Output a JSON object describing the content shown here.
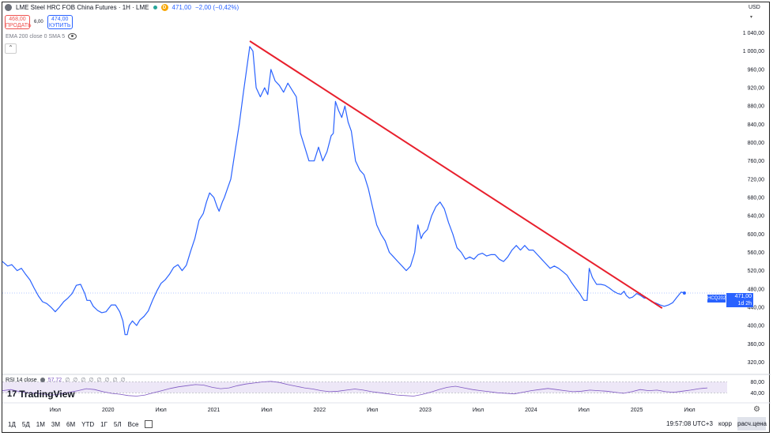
{
  "header": {
    "title": "LME Steel HRC FOB China Futures · 1H · LME",
    "badge": "D",
    "last": "471,00",
    "change": "−2,00 (−0,42%)"
  },
  "trade": {
    "sell_price": "468,00",
    "sell_label": "ПРОДАТЬ",
    "spread": "6,00",
    "buy_price": "474,00",
    "buy_label": "КУПИТЬ"
  },
  "indicator": {
    "label": "EMA 200 close 0 SMA 5"
  },
  "currency": "USD",
  "price_tag": {
    "symbol": "HCQ2025",
    "price": "471,00",
    "countdown": "1d 2h"
  },
  "rsi": {
    "label": "RSI 14 close",
    "value": "57,72",
    "na": "∅ ∅ ∅ ∅ ∅ ∅ ∅ ∅"
  },
  "logo": {
    "mark": "17",
    "text": "TradingView"
  },
  "bottom": {
    "timeframes": [
      "1Д",
      "5Д",
      "1М",
      "3М",
      "6М",
      "YTD",
      "1Г",
      "5Л",
      "Все"
    ],
    "time": "19:57:08 UTC+3",
    "corr": "корр",
    "calc": "расч.цена"
  },
  "colors": {
    "price_line": "#2962ff",
    "trendline": "#e8202d",
    "rsi_line": "#7e57c2",
    "rsi_band": "#e8e1f5",
    "price_tag": "#2962ff"
  },
  "chart_data": {
    "type": "line",
    "title": "LME Steel HRC FOB China Futures · 1H · LME",
    "ylabel": "USD",
    "ylim": [
      300,
      1060
    ],
    "y_ticks": [
      "1 040,00",
      "1 000,00",
      "960,00",
      "920,00",
      "880,00",
      "840,00",
      "800,00",
      "760,00",
      "720,00",
      "680,00",
      "640,00",
      "600,00",
      "560,00",
      "520,00",
      "480,00",
      "440,00",
      "400,00",
      "360,00",
      "320,00"
    ],
    "x_ticks": [
      {
        "label": "Июл",
        "x": 2019.5
      },
      {
        "label": "2020",
        "x": 2020.0
      },
      {
        "label": "Июл",
        "x": 2020.5
      },
      {
        "label": "2021",
        "x": 2021.0
      },
      {
        "label": "Июл",
        "x": 2021.5
      },
      {
        "label": "2022",
        "x": 2022.0
      },
      {
        "label": "Июл",
        "x": 2022.5
      },
      {
        "label": "2023",
        "x": 2023.0
      },
      {
        "label": "Июл",
        "x": 2023.5
      },
      {
        "label": "2024",
        "x": 2024.0
      },
      {
        "label": "Июл",
        "x": 2024.5
      },
      {
        "label": "2025",
        "x": 2025.0
      },
      {
        "label": "Июл",
        "x": 2025.5
      }
    ],
    "xlim": [
      2019.0,
      2025.78
    ],
    "series": [
      {
        "points": [
          [
            2019.0,
            540
          ],
          [
            2019.05,
            530
          ],
          [
            2019.09,
            533
          ],
          [
            2019.14,
            520
          ],
          [
            2019.18,
            525
          ],
          [
            2019.22,
            512
          ],
          [
            2019.26,
            500
          ],
          [
            2019.3,
            482
          ],
          [
            2019.34,
            465
          ],
          [
            2019.38,
            452
          ],
          [
            2019.42,
            448
          ],
          [
            2019.46,
            440
          ],
          [
            2019.5,
            430
          ],
          [
            2019.54,
            440
          ],
          [
            2019.58,
            452
          ],
          [
            2019.62,
            460
          ],
          [
            2019.66,
            470
          ],
          [
            2019.7,
            488
          ],
          [
            2019.74,
            490
          ],
          [
            2019.78,
            470
          ],
          [
            2019.8,
            455
          ],
          [
            2019.83,
            455
          ],
          [
            2019.86,
            442
          ],
          [
            2019.9,
            433
          ],
          [
            2019.94,
            428
          ],
          [
            2019.98,
            430
          ],
          [
            2020.03,
            445
          ],
          [
            2020.07,
            445
          ],
          [
            2020.11,
            430
          ],
          [
            2020.14,
            410
          ],
          [
            2020.16,
            380
          ],
          [
            2020.18,
            380
          ],
          [
            2020.2,
            400
          ],
          [
            2020.23,
            410
          ],
          [
            2020.27,
            400
          ],
          [
            2020.3,
            412
          ],
          [
            2020.34,
            420
          ],
          [
            2020.38,
            432
          ],
          [
            2020.42,
            455
          ],
          [
            2020.46,
            475
          ],
          [
            2020.5,
            492
          ],
          [
            2020.54,
            500
          ],
          [
            2020.58,
            512
          ],
          [
            2020.62,
            527
          ],
          [
            2020.66,
            533
          ],
          [
            2020.7,
            520
          ],
          [
            2020.74,
            532
          ],
          [
            2020.78,
            562
          ],
          [
            2020.82,
            590
          ],
          [
            2020.86,
            630
          ],
          [
            2020.9,
            645
          ],
          [
            2020.93,
            670
          ],
          [
            2020.96,
            690
          ],
          [
            2021.0,
            680
          ],
          [
            2021.03,
            660
          ],
          [
            2021.05,
            650
          ],
          [
            2021.08,
            670
          ],
          [
            2021.1,
            680
          ],
          [
            2021.13,
            700
          ],
          [
            2021.16,
            720
          ],
          [
            2021.2,
            780
          ],
          [
            2021.24,
            840
          ],
          [
            2021.28,
            910
          ],
          [
            2021.31,
            960
          ],
          [
            2021.34,
            1010
          ],
          [
            2021.37,
            1000
          ],
          [
            2021.4,
            920
          ],
          [
            2021.44,
            900
          ],
          [
            2021.48,
            920
          ],
          [
            2021.51,
            905
          ],
          [
            2021.54,
            960
          ],
          [
            2021.58,
            935
          ],
          [
            2021.62,
            925
          ],
          [
            2021.66,
            910
          ],
          [
            2021.7,
            930
          ],
          [
            2021.74,
            915
          ],
          [
            2021.78,
            900
          ],
          [
            2021.82,
            820
          ],
          [
            2021.86,
            790
          ],
          [
            2021.9,
            760
          ],
          [
            2021.95,
            760
          ],
          [
            2021.99,
            790
          ],
          [
            2022.03,
            760
          ],
          [
            2022.07,
            780
          ],
          [
            2022.11,
            815
          ],
          [
            2022.13,
            820
          ],
          [
            2022.15,
            890
          ],
          [
            2022.18,
            870
          ],
          [
            2022.21,
            855
          ],
          [
            2022.24,
            880
          ],
          [
            2022.27,
            845
          ],
          [
            2022.3,
            825
          ],
          [
            2022.34,
            760
          ],
          [
            2022.38,
            740
          ],
          [
            2022.42,
            730
          ],
          [
            2022.46,
            700
          ],
          [
            2022.5,
            660
          ],
          [
            2022.54,
            620
          ],
          [
            2022.58,
            600
          ],
          [
            2022.62,
            585
          ],
          [
            2022.66,
            560
          ],
          [
            2022.7,
            550
          ],
          [
            2022.74,
            540
          ],
          [
            2022.78,
            530
          ],
          [
            2022.82,
            520
          ],
          [
            2022.86,
            530
          ],
          [
            2022.9,
            560
          ],
          [
            2022.93,
            620
          ],
          [
            2022.96,
            590
          ],
          [
            2022.98,
            600
          ],
          [
            2023.02,
            610
          ],
          [
            2023.06,
            640
          ],
          [
            2023.1,
            660
          ],
          [
            2023.14,
            670
          ],
          [
            2023.18,
            655
          ],
          [
            2023.22,
            625
          ],
          [
            2023.26,
            600
          ],
          [
            2023.3,
            570
          ],
          [
            2023.34,
            560
          ],
          [
            2023.38,
            545
          ],
          [
            2023.42,
            550
          ],
          [
            2023.46,
            545
          ],
          [
            2023.5,
            555
          ],
          [
            2023.54,
            558
          ],
          [
            2023.58,
            552
          ],
          [
            2023.62,
            555
          ],
          [
            2023.66,
            555
          ],
          [
            2023.7,
            545
          ],
          [
            2023.74,
            540
          ],
          [
            2023.78,
            550
          ],
          [
            2023.82,
            565
          ],
          [
            2023.86,
            575
          ],
          [
            2023.9,
            565
          ],
          [
            2023.94,
            575
          ],
          [
            2023.98,
            565
          ],
          [
            2024.02,
            565
          ],
          [
            2024.06,
            555
          ],
          [
            2024.1,
            545
          ],
          [
            2024.14,
            535
          ],
          [
            2024.18,
            525
          ],
          [
            2024.22,
            530
          ],
          [
            2024.26,
            525
          ],
          [
            2024.3,
            518
          ],
          [
            2024.34,
            510
          ],
          [
            2024.38,
            495
          ],
          [
            2024.42,
            482
          ],
          [
            2024.46,
            470
          ],
          [
            2024.48,
            462
          ],
          [
            2024.5,
            455
          ],
          [
            2024.53,
            455
          ],
          [
            2024.55,
            525
          ],
          [
            2024.58,
            505
          ],
          [
            2024.62,
            490
          ],
          [
            2024.66,
            490
          ],
          [
            2024.7,
            488
          ],
          [
            2024.74,
            482
          ],
          [
            2024.78,
            475
          ],
          [
            2024.82,
            470
          ],
          [
            2024.85,
            468
          ],
          [
            2024.88,
            475
          ],
          [
            2024.9,
            466
          ],
          [
            2024.93,
            460
          ],
          [
            2024.96,
            462
          ],
          [
            2025.0,
            470
          ],
          [
            2025.04,
            465
          ],
          [
            2025.07,
            460
          ],
          [
            2025.1,
            460
          ],
          [
            2025.14,
            452
          ],
          [
            2025.18,
            449
          ],
          [
            2025.22,
            445
          ],
          [
            2025.26,
            442
          ],
          [
            2025.3,
            445
          ],
          [
            2025.34,
            450
          ],
          [
            2025.38,
            462
          ],
          [
            2025.42,
            473
          ],
          [
            2025.45,
            471
          ]
        ]
      }
    ],
    "trendline": [
      [
        2021.34,
        1022
      ],
      [
        2025.24,
        438
      ]
    ],
    "current_price": 471,
    "rsi": {
      "ylim": [
        15,
        90
      ],
      "ticks": [
        "80,00",
        "40,00"
      ],
      "band": [
        40,
        80
      ],
      "values": [
        48,
        52,
        45,
        40,
        38,
        35,
        32,
        36,
        42,
        48,
        55,
        52,
        44,
        38,
        35,
        30,
        28,
        32,
        40,
        48,
        56,
        62,
        66,
        70,
        68,
        60,
        55,
        58,
        66,
        72,
        76,
        80,
        82,
        78,
        70,
        64,
        58,
        54,
        48,
        44,
        46,
        50,
        54,
        50,
        44,
        40,
        36,
        32,
        30,
        28,
        34,
        42,
        52,
        60,
        64,
        58,
        52,
        48,
        44,
        40,
        38,
        36,
        42,
        48,
        52,
        56,
        52,
        48,
        44,
        46,
        50,
        48,
        46,
        42,
        38,
        44,
        52,
        48,
        50,
        44,
        42,
        46,
        50,
        55,
        58
      ]
    }
  }
}
